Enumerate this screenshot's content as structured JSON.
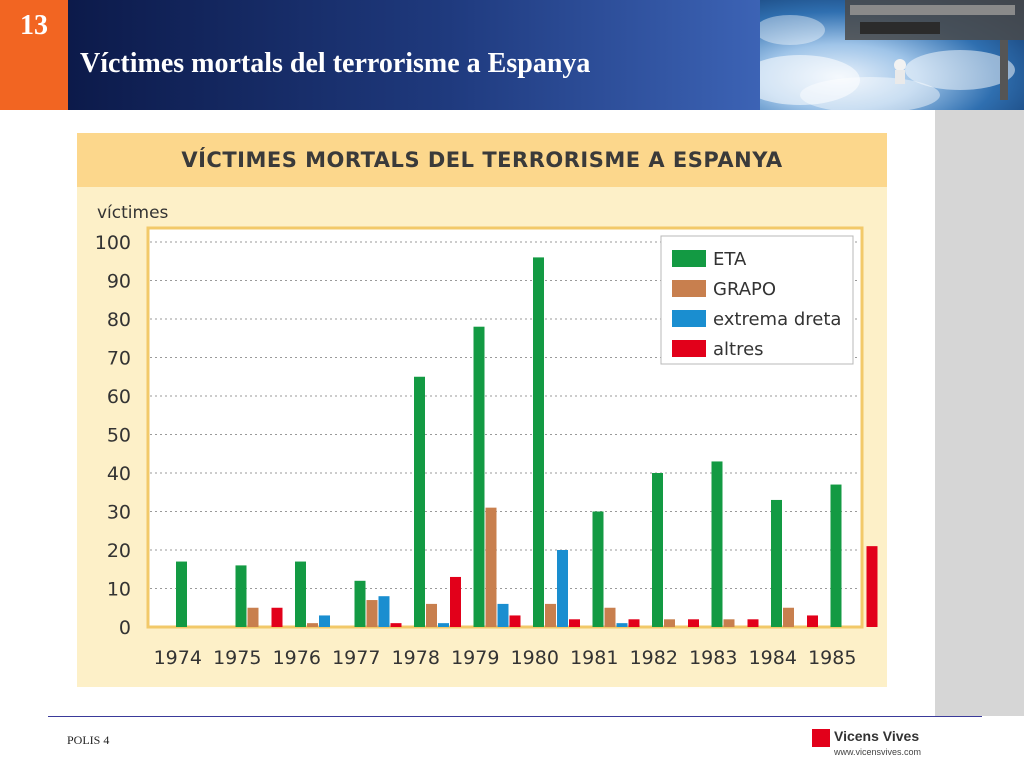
{
  "slide": {
    "number": "13",
    "title": "Víctimes mortals del terrorisme a Espanya",
    "footer_left": "POLIS 4",
    "logo_name": "Vicens Vives",
    "logo_url": "www.vicensvives.com"
  },
  "colors": {
    "eta": "#139a43",
    "grapo": "#c87f4e",
    "extrema_dreta": "#1a8ed0",
    "altres": "#e2001a"
  },
  "chart_data": {
    "type": "bar",
    "title": "VÍCTIMES MORTALS DEL TERRORISME A ESPANYA",
    "ylabel": "víctimes",
    "xlabel": "",
    "ylim": [
      0,
      100
    ],
    "yticks": [
      "0",
      "10",
      "20",
      "30",
      "40",
      "50",
      "60",
      "70",
      "80",
      "90",
      "100"
    ],
    "grid": "horizontal dotted",
    "legend_position": "top-right",
    "categories": [
      "1974",
      "1975",
      "1976",
      "1977",
      "1978",
      "1979",
      "1980",
      "1981",
      "1982",
      "1983",
      "1984",
      "1985"
    ],
    "series": [
      {
        "name": "ETA",
        "color": "#139a43",
        "values": [
          17,
          16,
          17,
          12,
          65,
          78,
          96,
          30,
          40,
          43,
          33,
          37
        ]
      },
      {
        "name": "GRAPO",
        "color": "#c87f4e",
        "values": [
          0,
          5,
          1,
          7,
          6,
          31,
          6,
          5,
          2,
          2,
          5,
          0
        ]
      },
      {
        "name": "extrema dreta",
        "color": "#1a8ed0",
        "values": [
          0,
          0,
          3,
          8,
          1,
          6,
          20,
          1,
          0,
          0,
          0,
          0
        ]
      },
      {
        "name": "altres",
        "color": "#e2001a",
        "values": [
          0,
          5,
          0,
          1,
          13,
          3,
          2,
          2,
          2,
          2,
          3,
          21
        ]
      }
    ]
  }
}
